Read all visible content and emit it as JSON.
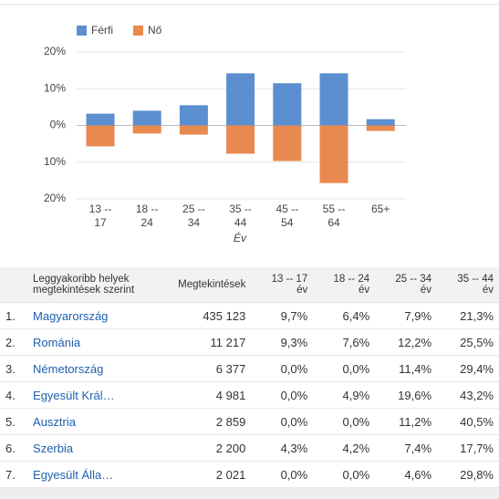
{
  "chart_data": {
    "type": "bar",
    "categories": [
      "13 --\n17",
      "18 --\n24",
      "25 --\n34",
      "35 --\n44",
      "45 --\n54",
      "55 --\n64",
      "65+"
    ],
    "x_label": "Év",
    "series": [
      {
        "name": "Férfi",
        "color": "#5b8fd0",
        "values": [
          3.2,
          4.0,
          5.5,
          14.2,
          11.5,
          14.2,
          1.7
        ]
      },
      {
        "name": "Nő",
        "color": "#e8894f",
        "values": [
          -5.7,
          -2.2,
          -2.5,
          -7.7,
          -9.7,
          -15.7,
          -1.5
        ]
      }
    ],
    "ylim": [
      -20,
      20
    ],
    "yticks": [
      {
        "value": 20,
        "label": "20%"
      },
      {
        "value": 10,
        "label": "10%"
      },
      {
        "value": 0,
        "label": "0%"
      },
      {
        "value": -10,
        "label": "10%"
      },
      {
        "value": -20,
        "label": "20%"
      }
    ],
    "grid": true,
    "legend": "top-left"
  },
  "table": {
    "header": [
      "",
      "Leggyakoribb helyek megtekintések szerint",
      "Megtekintések",
      "13 -- 17\név",
      "18 -- 24\név",
      "25 -- 34\név",
      "35 -- 44\név"
    ],
    "rows": [
      [
        "1.",
        "Magyarország",
        "435 123",
        "9,7%",
        "6,4%",
        "7,9%",
        "21,3%"
      ],
      [
        "2.",
        "Románia",
        "11 217",
        "9,3%",
        "7,6%",
        "12,2%",
        "25,5%"
      ],
      [
        "3.",
        "Németország",
        "6 377",
        "0,0%",
        "0,0%",
        "11,4%",
        "29,4%"
      ],
      [
        "4.",
        "Egyesült Král…",
        "4 981",
        "0,0%",
        "4,9%",
        "19,6%",
        "43,2%"
      ],
      [
        "5.",
        "Ausztria",
        "2 859",
        "0,0%",
        "0,0%",
        "11,2%",
        "40,5%"
      ],
      [
        "6.",
        "Szerbia",
        "2 200",
        "4,3%",
        "4,2%",
        "7,4%",
        "17,7%"
      ],
      [
        "7.",
        "Egyesült Álla…",
        "2 021",
        "0,0%",
        "0,0%",
        "4,6%",
        "29,8%"
      ]
    ]
  }
}
